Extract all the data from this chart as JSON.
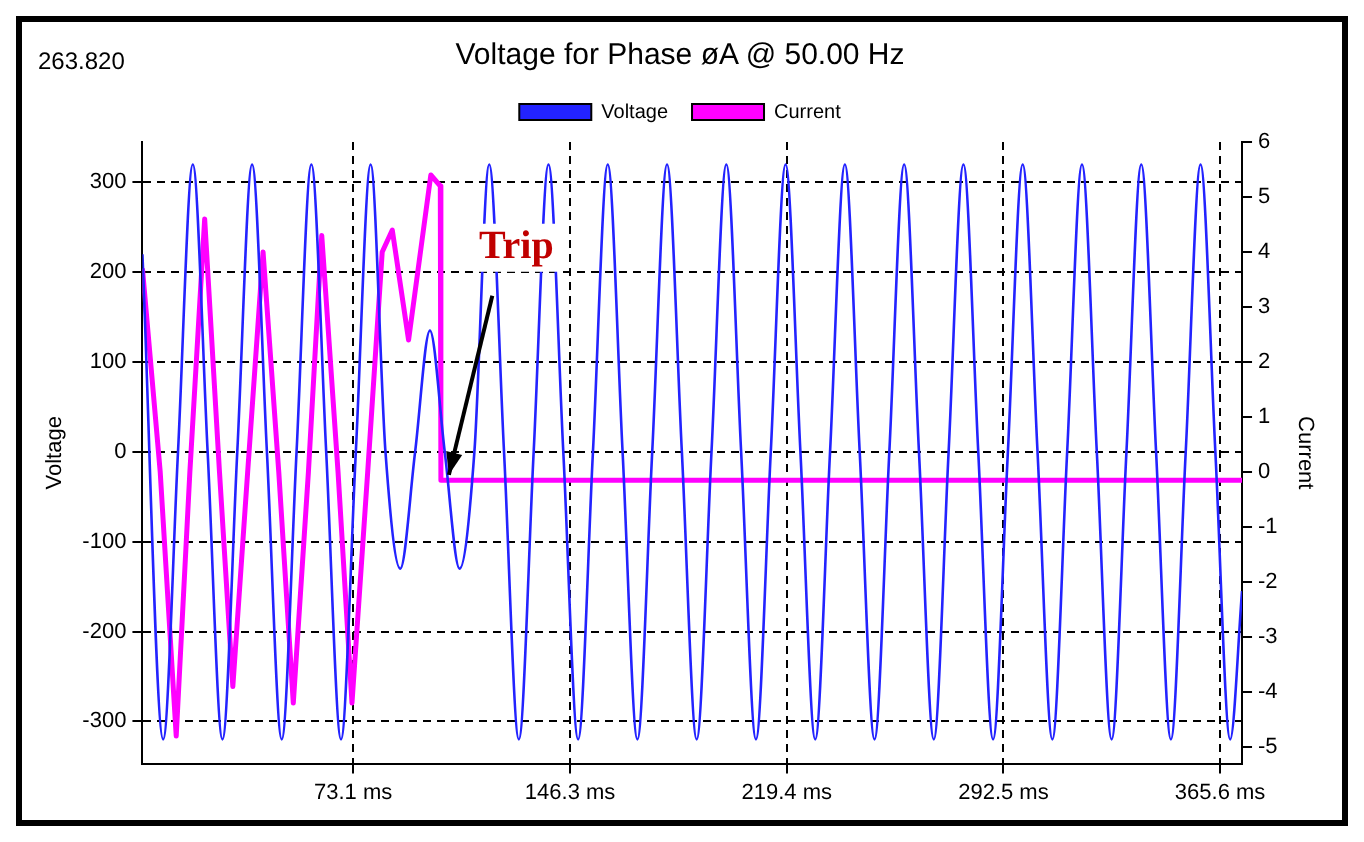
{
  "chart_data": {
    "type": "line",
    "title": "Voltage for Phase øA @ 50.00 Hz",
    "ylabel": "Voltage",
    "y2label": "Current",
    "annotations": [
      "263.820",
      {
        "text": "Trip",
        "x": 102.7,
        "y": -30
      }
    ],
    "xlim": [
      2,
      373
    ],
    "xticks": [
      {
        "value": 73.1,
        "label": "73.1 ms"
      },
      {
        "value": 146.3,
        "label": "146.3 ms"
      },
      {
        "value": 219.4,
        "label": "219.4 ms"
      },
      {
        "value": 292.5,
        "label": "292.5 ms"
      },
      {
        "value": 365.6,
        "label": "365.6 ms"
      }
    ],
    "ylim": [
      -347,
      345
    ],
    "yticks": [
      -300,
      -200,
      -100,
      0,
      100,
      200,
      300
    ],
    "y2lim": [
      -5.3,
      6
    ],
    "y2ticks": [
      -5,
      -4,
      -3,
      -2,
      -1,
      0,
      1,
      2,
      3,
      4,
      5,
      6
    ],
    "grid": true,
    "line_style": "solid",
    "marker": "none",
    "legend": "top",
    "series": [
      {
        "name": "Voltage",
        "color": "#2323ff",
        "x": [
          2,
          9,
          14,
          19,
          24,
          29,
          34,
          39,
          44,
          49,
          54,
          59,
          64,
          69,
          74,
          79,
          84,
          89,
          94,
          99,
          104,
          109,
          114,
          119,
          124,
          129,
          134,
          139,
          144,
          149,
          154,
          159,
          164,
          169,
          174,
          179,
          184,
          189,
          194,
          199,
          204,
          209,
          214,
          219,
          224,
          229,
          234,
          239,
          244,
          249,
          254,
          259,
          264,
          269,
          274,
          279,
          284,
          289,
          294,
          299,
          304,
          309,
          314,
          319,
          324,
          329,
          334,
          339,
          344,
          349,
          354,
          359,
          364,
          369,
          373
        ],
        "values": [
          220,
          -320,
          0,
          320,
          0,
          -320,
          0,
          320,
          0,
          -320,
          0,
          320,
          0,
          -320,
          0,
          320,
          0,
          -130,
          0,
          135,
          0,
          -130,
          0,
          320,
          0,
          -320,
          0,
          320,
          0,
          -320,
          0,
          320,
          0,
          -320,
          0,
          320,
          0,
          -320,
          0,
          320,
          0,
          -320,
          0,
          320,
          0,
          -320,
          0,
          320,
          0,
          -320,
          0,
          320,
          0,
          -320,
          0,
          320,
          0,
          -320,
          0,
          320,
          0,
          -320,
          0,
          320,
          0,
          -320,
          0,
          320,
          0,
          -320,
          0,
          320,
          0,
          -320,
          -155
        ]
      },
      {
        "name": "Current",
        "color": "#ff00ff",
        "axis": "y2",
        "x": [
          2,
          8,
          13.4,
          18,
          23,
          28,
          32.5,
          37.5,
          42.7,
          48,
          52.9,
          58,
          62.5,
          68,
          72.7,
          78,
          82.9,
          86.3,
          91.8,
          99.3,
          102.5,
          102.7,
          373
        ],
        "values": [
          3.7,
          0,
          -4.8,
          0,
          4.6,
          0,
          -3.9,
          0,
          4.0,
          0,
          -4.2,
          0,
          4.3,
          0,
          -4.2,
          0,
          4.0,
          4.4,
          2.4,
          5.4,
          5.2,
          -0.15,
          -0.15
        ]
      }
    ]
  }
}
